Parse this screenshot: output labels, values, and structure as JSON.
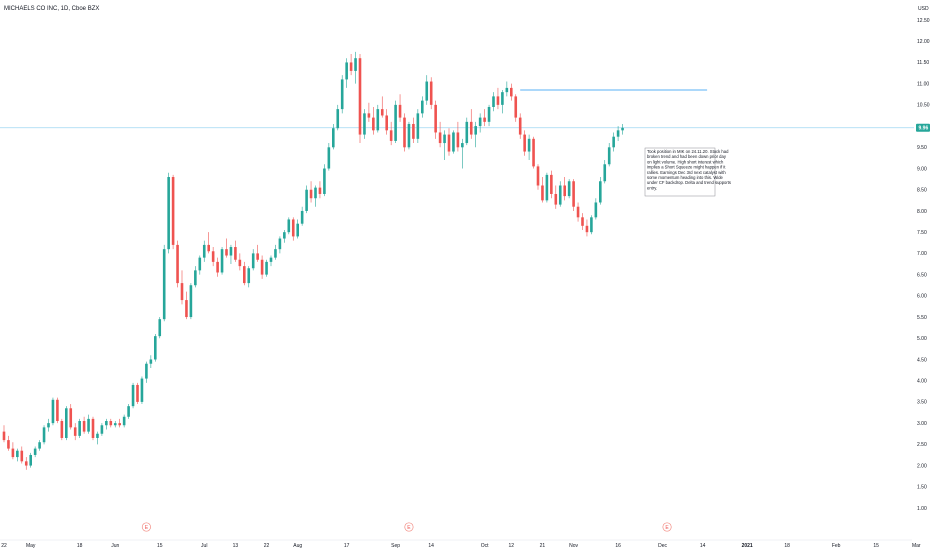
{
  "header": {
    "title": "MICHAELS CO INC, 1D, Cboe BZX"
  },
  "currency": "USD",
  "current_price_label": "9.96",
  "note_lines": [
    "Took position in MIK on 24.11.20. Stock had",
    "broken trend and had been down prior day",
    "on light volume. High short interest which",
    "implies a Short Squeeze might happen if it",
    "rallies. Earnings Dec 3rd next catalyst with",
    "some momentum heading into this. Wide",
    "under CF backdrop. Delta and trend supports",
    "entry."
  ],
  "earnings_marker": "E",
  "colors": {
    "up": "#26a69a",
    "down": "#ef5350",
    "price_line": "#9fd7f2",
    "resistance": "#2196f3",
    "price_badge": "#26a69a"
  },
  "chart_data": {
    "type": "candlestick",
    "title": "MICHAELS CO INC, 1D, Cboe BZX",
    "ylabel": "USD",
    "ylim": [
      1.0,
      12.5
    ],
    "y_ticks": [
      1.0,
      1.5,
      2.0,
      2.5,
      3.0,
      3.5,
      4.0,
      4.5,
      5.0,
      5.5,
      6.0,
      6.5,
      7.0,
      7.5,
      8.0,
      8.5,
      9.0,
      9.5,
      10.0,
      10.5,
      11.0,
      11.5,
      12.0,
      12.5
    ],
    "y_tick_labels": [
      "1.00",
      "1.50",
      "2.00",
      "2.50",
      "3.00",
      "3.50",
      "4.00",
      "4.50",
      "5.00",
      "5.50",
      "6.00",
      "6.50",
      "7.00",
      "7.50",
      "8.00",
      "8.50",
      "9.00",
      "9.50",
      "10.00",
      "10.50",
      "11.00",
      "11.50",
      "12.00",
      "12.50"
    ],
    "x_ticks": [
      {
        "label": "22",
        "bar": 0,
        "bold": false
      },
      {
        "label": "May",
        "bar": 6,
        "bold": false
      },
      {
        "label": "18",
        "bar": 17,
        "bold": false
      },
      {
        "label": "Jun",
        "bar": 25,
        "bold": false
      },
      {
        "label": "15",
        "bar": 35,
        "bold": false
      },
      {
        "label": "Jul",
        "bar": 45,
        "bold": false
      },
      {
        "label": "13",
        "bar": 52,
        "bold": false
      },
      {
        "label": "22",
        "bar": 59,
        "bold": false
      },
      {
        "label": "Aug",
        "bar": 66,
        "bold": false
      },
      {
        "label": "17",
        "bar": 77,
        "bold": false
      },
      {
        "label": "Sep",
        "bar": 88,
        "bold": false
      },
      {
        "label": "14",
        "bar": 96,
        "bold": false
      },
      {
        "label": "Oct",
        "bar": 108,
        "bold": false
      },
      {
        "label": "12",
        "bar": 114,
        "bold": false
      },
      {
        "label": "21",
        "bar": 121,
        "bold": false
      },
      {
        "label": "Nov",
        "bar": 128,
        "bold": false
      },
      {
        "label": "16",
        "bar": 138,
        "bold": false
      },
      {
        "label": "Dec",
        "bar": 148,
        "bold": false
      },
      {
        "label": "14",
        "bar": 157,
        "bold": false
      },
      {
        "label": "2021",
        "bar": 167,
        "bold": true
      },
      {
        "label": "18",
        "bar": 176,
        "bold": false
      },
      {
        "label": "Feb",
        "bar": 187,
        "bold": false
      },
      {
        "label": "15",
        "bar": 196,
        "bold": false
      },
      {
        "label": "Mar",
        "bar": 205,
        "bold": false
      }
    ],
    "earnings_bars": [
      32,
      91,
      149
    ],
    "current_price": 9.96,
    "resistance_level": 10.85,
    "resistance_from_bar": 116,
    "resistance_to_bar": 158,
    "series": [
      {
        "o": 2.8,
        "h": 2.95,
        "l": 2.55,
        "c": 2.6
      },
      {
        "o": 2.6,
        "h": 2.7,
        "l": 2.35,
        "c": 2.4
      },
      {
        "o": 2.4,
        "h": 2.55,
        "l": 2.15,
        "c": 2.2
      },
      {
        "o": 2.2,
        "h": 2.4,
        "l": 2.1,
        "c": 2.35
      },
      {
        "o": 2.35,
        "h": 2.45,
        "l": 2.05,
        "c": 2.1
      },
      {
        "o": 2.1,
        "h": 2.2,
        "l": 1.9,
        "c": 2.0
      },
      {
        "o": 2.0,
        "h": 2.3,
        "l": 1.95,
        "c": 2.25
      },
      {
        "o": 2.25,
        "h": 2.45,
        "l": 2.2,
        "c": 2.4
      },
      {
        "o": 2.4,
        "h": 2.6,
        "l": 2.35,
        "c": 2.55
      },
      {
        "o": 2.55,
        "h": 2.95,
        "l": 2.5,
        "c": 2.9
      },
      {
        "o": 2.9,
        "h": 3.1,
        "l": 2.8,
        "c": 3.0
      },
      {
        "o": 3.0,
        "h": 3.6,
        "l": 2.95,
        "c": 3.55
      },
      {
        "o": 3.55,
        "h": 3.6,
        "l": 3.0,
        "c": 3.05
      },
      {
        "o": 3.05,
        "h": 3.1,
        "l": 2.6,
        "c": 2.65
      },
      {
        "o": 2.65,
        "h": 3.4,
        "l": 2.6,
        "c": 3.35
      },
      {
        "o": 3.35,
        "h": 3.45,
        "l": 2.85,
        "c": 2.9
      },
      {
        "o": 2.9,
        "h": 3.0,
        "l": 2.6,
        "c": 2.7
      },
      {
        "o": 2.7,
        "h": 3.1,
        "l": 2.65,
        "c": 3.05
      },
      {
        "o": 3.05,
        "h": 3.15,
        "l": 2.75,
        "c": 2.8
      },
      {
        "o": 2.8,
        "h": 3.2,
        "l": 2.75,
        "c": 3.1
      },
      {
        "o": 3.1,
        "h": 3.15,
        "l": 2.6,
        "c": 2.65
      },
      {
        "o": 2.65,
        "h": 2.8,
        "l": 2.5,
        "c": 2.75
      },
      {
        "o": 2.75,
        "h": 3.0,
        "l": 2.7,
        "c": 2.95
      },
      {
        "o": 2.95,
        "h": 3.1,
        "l": 2.85,
        "c": 3.05
      },
      {
        "o": 3.05,
        "h": 3.1,
        "l": 2.9,
        "c": 2.95
      },
      {
        "o": 2.95,
        "h": 3.05,
        "l": 2.9,
        "c": 3.0
      },
      {
        "o": 3.0,
        "h": 3.1,
        "l": 2.9,
        "c": 2.95
      },
      {
        "o": 2.95,
        "h": 3.2,
        "l": 2.9,
        "c": 3.15
      },
      {
        "o": 3.15,
        "h": 3.45,
        "l": 3.1,
        "c": 3.4
      },
      {
        "o": 3.4,
        "h": 3.95,
        "l": 3.35,
        "c": 3.9
      },
      {
        "o": 3.9,
        "h": 3.95,
        "l": 3.45,
        "c": 3.5
      },
      {
        "o": 3.5,
        "h": 4.1,
        "l": 3.45,
        "c": 4.05
      },
      {
        "o": 4.05,
        "h": 4.45,
        "l": 3.95,
        "c": 4.4
      },
      {
        "o": 4.4,
        "h": 4.6,
        "l": 4.3,
        "c": 4.5
      },
      {
        "o": 4.5,
        "h": 5.1,
        "l": 4.45,
        "c": 5.05
      },
      {
        "o": 5.05,
        "h": 5.5,
        "l": 5.0,
        "c": 5.45
      },
      {
        "o": 5.45,
        "h": 7.2,
        "l": 5.4,
        "c": 7.1
      },
      {
        "o": 7.1,
        "h": 8.9,
        "l": 7.0,
        "c": 8.8
      },
      {
        "o": 8.8,
        "h": 8.85,
        "l": 7.1,
        "c": 7.2
      },
      {
        "o": 7.2,
        "h": 7.3,
        "l": 6.2,
        "c": 6.3
      },
      {
        "o": 6.3,
        "h": 6.6,
        "l": 5.8,
        "c": 5.9
      },
      {
        "o": 5.9,
        "h": 6.1,
        "l": 5.45,
        "c": 5.5
      },
      {
        "o": 5.5,
        "h": 6.3,
        "l": 5.45,
        "c": 6.25
      },
      {
        "o": 6.25,
        "h": 6.7,
        "l": 6.2,
        "c": 6.6
      },
      {
        "o": 6.6,
        "h": 6.95,
        "l": 6.5,
        "c": 6.9
      },
      {
        "o": 6.9,
        "h": 7.3,
        "l": 6.8,
        "c": 7.2
      },
      {
        "o": 7.2,
        "h": 7.5,
        "l": 7.0,
        "c": 7.05
      },
      {
        "o": 7.05,
        "h": 7.15,
        "l": 6.7,
        "c": 6.8
      },
      {
        "o": 6.8,
        "h": 6.9,
        "l": 6.45,
        "c": 6.55
      },
      {
        "o": 6.55,
        "h": 7.15,
        "l": 6.5,
        "c": 7.1
      },
      {
        "o": 7.1,
        "h": 7.35,
        "l": 6.9,
        "c": 6.95
      },
      {
        "o": 6.95,
        "h": 7.2,
        "l": 6.75,
        "c": 7.15
      },
      {
        "o": 7.15,
        "h": 7.3,
        "l": 6.8,
        "c": 6.85
      },
      {
        "o": 6.85,
        "h": 7.0,
        "l": 6.6,
        "c": 6.7
      },
      {
        "o": 6.7,
        "h": 6.8,
        "l": 6.25,
        "c": 6.3
      },
      {
        "o": 6.3,
        "h": 6.7,
        "l": 6.2,
        "c": 6.65
      },
      {
        "o": 6.65,
        "h": 7.1,
        "l": 6.6,
        "c": 7.0
      },
      {
        "o": 7.0,
        "h": 7.2,
        "l": 6.8,
        "c": 6.85
      },
      {
        "o": 6.85,
        "h": 6.95,
        "l": 6.4,
        "c": 6.5
      },
      {
        "o": 6.5,
        "h": 6.85,
        "l": 6.45,
        "c": 6.8
      },
      {
        "o": 6.8,
        "h": 6.95,
        "l": 6.7,
        "c": 6.9
      },
      {
        "o": 6.9,
        "h": 7.2,
        "l": 6.85,
        "c": 7.1
      },
      {
        "o": 7.1,
        "h": 7.4,
        "l": 7.0,
        "c": 7.35
      },
      {
        "o": 7.35,
        "h": 7.55,
        "l": 7.25,
        "c": 7.5
      },
      {
        "o": 7.5,
        "h": 7.85,
        "l": 7.45,
        "c": 7.8
      },
      {
        "o": 7.8,
        "h": 7.85,
        "l": 7.3,
        "c": 7.4
      },
      {
        "o": 7.4,
        "h": 7.8,
        "l": 7.35,
        "c": 7.7
      },
      {
        "o": 7.7,
        "h": 8.1,
        "l": 7.65,
        "c": 8.0
      },
      {
        "o": 8.0,
        "h": 8.6,
        "l": 7.95,
        "c": 8.5
      },
      {
        "o": 8.5,
        "h": 8.7,
        "l": 8.2,
        "c": 8.3
      },
      {
        "o": 8.3,
        "h": 8.6,
        "l": 8.1,
        "c": 8.55
      },
      {
        "o": 8.55,
        "h": 8.7,
        "l": 8.3,
        "c": 8.4
      },
      {
        "o": 8.4,
        "h": 9.1,
        "l": 8.35,
        "c": 9.0
      },
      {
        "o": 9.0,
        "h": 9.6,
        "l": 8.95,
        "c": 9.5
      },
      {
        "o": 9.5,
        "h": 10.05,
        "l": 9.45,
        "c": 9.95
      },
      {
        "o": 9.95,
        "h": 10.5,
        "l": 9.9,
        "c": 10.4
      },
      {
        "o": 10.4,
        "h": 11.2,
        "l": 10.3,
        "c": 11.1
      },
      {
        "o": 11.1,
        "h": 11.6,
        "l": 10.9,
        "c": 11.5
      },
      {
        "o": 11.5,
        "h": 11.7,
        "l": 11.2,
        "c": 11.3
      },
      {
        "o": 11.3,
        "h": 11.75,
        "l": 11.0,
        "c": 11.6
      },
      {
        "o": 11.6,
        "h": 11.7,
        "l": 9.6,
        "c": 9.8
      },
      {
        "o": 9.8,
        "h": 10.4,
        "l": 9.7,
        "c": 10.3
      },
      {
        "o": 10.3,
        "h": 10.55,
        "l": 10.1,
        "c": 10.2
      },
      {
        "o": 10.2,
        "h": 10.45,
        "l": 9.8,
        "c": 9.9
      },
      {
        "o": 9.9,
        "h": 10.5,
        "l": 9.85,
        "c": 10.4
      },
      {
        "o": 10.4,
        "h": 10.7,
        "l": 10.2,
        "c": 10.25
      },
      {
        "o": 10.25,
        "h": 10.4,
        "l": 9.8,
        "c": 9.9
      },
      {
        "o": 9.9,
        "h": 10.1,
        "l": 9.55,
        "c": 9.65
      },
      {
        "o": 9.65,
        "h": 10.6,
        "l": 9.6,
        "c": 10.5
      },
      {
        "o": 10.5,
        "h": 10.75,
        "l": 10.1,
        "c": 10.2
      },
      {
        "o": 10.2,
        "h": 10.3,
        "l": 9.4,
        "c": 9.5
      },
      {
        "o": 9.5,
        "h": 10.1,
        "l": 9.45,
        "c": 10.05
      },
      {
        "o": 10.05,
        "h": 10.2,
        "l": 9.6,
        "c": 9.7
      },
      {
        "o": 9.7,
        "h": 10.4,
        "l": 9.6,
        "c": 10.3
      },
      {
        "o": 10.3,
        "h": 10.7,
        "l": 10.2,
        "c": 10.6
      },
      {
        "o": 10.6,
        "h": 11.2,
        "l": 10.5,
        "c": 11.05
      },
      {
        "o": 11.05,
        "h": 11.15,
        "l": 10.4,
        "c": 10.5
      },
      {
        "o": 10.5,
        "h": 10.6,
        "l": 9.7,
        "c": 9.85
      },
      {
        "o": 9.85,
        "h": 10.1,
        "l": 9.5,
        "c": 9.6
      },
      {
        "o": 9.6,
        "h": 9.9,
        "l": 9.2,
        "c": 9.8
      },
      {
        "o": 9.8,
        "h": 9.95,
        "l": 9.3,
        "c": 9.4
      },
      {
        "o": 9.4,
        "h": 9.9,
        "l": 9.35,
        "c": 9.85
      },
      {
        "o": 9.85,
        "h": 10.1,
        "l": 9.4,
        "c": 9.5
      },
      {
        "o": 9.5,
        "h": 9.7,
        "l": 9.0,
        "c": 9.6
      },
      {
        "o": 9.6,
        "h": 10.2,
        "l": 9.55,
        "c": 10.1
      },
      {
        "o": 10.1,
        "h": 10.4,
        "l": 9.7,
        "c": 9.8
      },
      {
        "o": 9.8,
        "h": 10.1,
        "l": 9.5,
        "c": 10.0
      },
      {
        "o": 10.0,
        "h": 10.3,
        "l": 9.85,
        "c": 10.2
      },
      {
        "o": 10.2,
        "h": 10.4,
        "l": 10.0,
        "c": 10.1
      },
      {
        "o": 10.1,
        "h": 10.5,
        "l": 10.0,
        "c": 10.45
      },
      {
        "o": 10.45,
        "h": 10.8,
        "l": 10.35,
        "c": 10.7
      },
      {
        "o": 10.7,
        "h": 10.9,
        "l": 10.4,
        "c": 10.5
      },
      {
        "o": 10.5,
        "h": 10.85,
        "l": 10.3,
        "c": 10.8
      },
      {
        "o": 10.8,
        "h": 11.05,
        "l": 10.7,
        "c": 10.9
      },
      {
        "o": 10.9,
        "h": 11.0,
        "l": 10.6,
        "c": 10.7
      },
      {
        "o": 10.7,
        "h": 10.75,
        "l": 10.1,
        "c": 10.2
      },
      {
        "o": 10.2,
        "h": 10.3,
        "l": 9.7,
        "c": 9.8
      },
      {
        "o": 9.8,
        "h": 9.9,
        "l": 9.3,
        "c": 9.4
      },
      {
        "o": 9.4,
        "h": 9.8,
        "l": 9.2,
        "c": 9.7
      },
      {
        "o": 9.7,
        "h": 9.75,
        "l": 9.0,
        "c": 9.05
      },
      {
        "o": 9.05,
        "h": 9.1,
        "l": 8.5,
        "c": 8.6
      },
      {
        "o": 8.6,
        "h": 8.8,
        "l": 8.2,
        "c": 8.25
      },
      {
        "o": 8.25,
        "h": 8.9,
        "l": 8.2,
        "c": 8.85
      },
      {
        "o": 8.85,
        "h": 8.95,
        "l": 8.3,
        "c": 8.4
      },
      {
        "o": 8.4,
        "h": 8.6,
        "l": 8.05,
        "c": 8.15
      },
      {
        "o": 8.15,
        "h": 8.7,
        "l": 8.1,
        "c": 8.6
      },
      {
        "o": 8.6,
        "h": 8.8,
        "l": 8.25,
        "c": 8.35
      },
      {
        "o": 8.35,
        "h": 8.75,
        "l": 8.3,
        "c": 8.7
      },
      {
        "o": 8.7,
        "h": 8.75,
        "l": 8.0,
        "c": 8.1
      },
      {
        "o": 8.1,
        "h": 8.2,
        "l": 7.75,
        "c": 7.85
      },
      {
        "o": 7.85,
        "h": 7.95,
        "l": 7.55,
        "c": 7.65
      },
      {
        "o": 7.65,
        "h": 7.8,
        "l": 7.4,
        "c": 7.5
      },
      {
        "o": 7.5,
        "h": 7.9,
        "l": 7.45,
        "c": 7.85
      },
      {
        "o": 7.85,
        "h": 8.3,
        "l": 7.8,
        "c": 8.2
      },
      {
        "o": 8.2,
        "h": 8.8,
        "l": 8.15,
        "c": 8.7
      },
      {
        "o": 8.7,
        "h": 9.2,
        "l": 8.65,
        "c": 9.1
      },
      {
        "o": 9.1,
        "h": 9.6,
        "l": 9.05,
        "c": 9.5
      },
      {
        "o": 9.5,
        "h": 9.85,
        "l": 9.4,
        "c": 9.75
      },
      {
        "o": 9.75,
        "h": 10.0,
        "l": 9.65,
        "c": 9.9
      },
      {
        "o": 9.9,
        "h": 10.05,
        "l": 9.8,
        "c": 9.96
      }
    ]
  }
}
